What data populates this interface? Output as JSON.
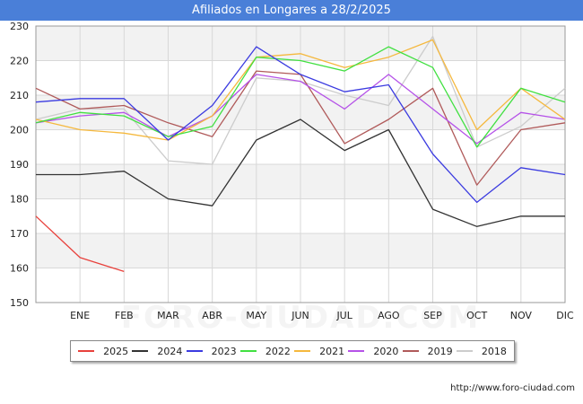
{
  "title": "Afiliados en Longares a 28/2/2025",
  "source": "http://www.foro-ciudad.com",
  "watermark": "FORO-CIUDAD.COM",
  "chart_data": {
    "type": "line",
    "categories": [
      "",
      "ENE",
      "FEB",
      "MAR",
      "ABR",
      "MAY",
      "JUN",
      "JUL",
      "AGO",
      "SEP",
      "OCT",
      "NOV",
      "DIC"
    ],
    "ylim": [
      150,
      230
    ],
    "yticks": [
      150,
      160,
      170,
      180,
      190,
      200,
      210,
      220,
      230
    ],
    "grid": true,
    "legend_position": "bottom",
    "series": [
      {
        "name": "2025",
        "color": "#e8413c",
        "values": [
          175,
          163,
          159,
          null,
          null,
          null,
          null,
          null,
          null,
          null,
          null,
          null,
          null
        ]
      },
      {
        "name": "2024",
        "color": "#333333",
        "values": [
          187,
          187,
          188,
          180,
          178,
          197,
          203,
          194,
          200,
          177,
          172,
          175,
          175
        ]
      },
      {
        "name": "2023",
        "color": "#3b3be0",
        "values": [
          208,
          209,
          209,
          197,
          207,
          224,
          216,
          211,
          213,
          193,
          179,
          189,
          187
        ]
      },
      {
        "name": "2022",
        "color": "#41e041",
        "values": [
          202,
          205,
          204,
          198,
          201,
          221,
          220,
          217,
          224,
          218,
          195,
          212,
          208
        ]
      },
      {
        "name": "2021",
        "color": "#f5b83d",
        "values": [
          203,
          200,
          199,
          197,
          204,
          221,
          222,
          218,
          221,
          226,
          200,
          212,
          203
        ]
      },
      {
        "name": "2020",
        "color": "#b552e8",
        "values": [
          202,
          204,
          205,
          198,
          204,
          216,
          214,
          206,
          216,
          206,
          196,
          205,
          203
        ]
      },
      {
        "name": "2019",
        "color": "#b05a5a",
        "values": [
          212,
          206,
          207,
          202,
          198,
          217,
          216,
          196,
          203,
          212,
          184,
          200,
          202
        ]
      },
      {
        "name": "2018",
        "color": "#cccccc",
        "values": [
          203,
          206,
          206,
          191,
          190,
          215,
          214,
          210,
          207,
          227,
          195,
          201,
          212
        ]
      }
    ]
  }
}
